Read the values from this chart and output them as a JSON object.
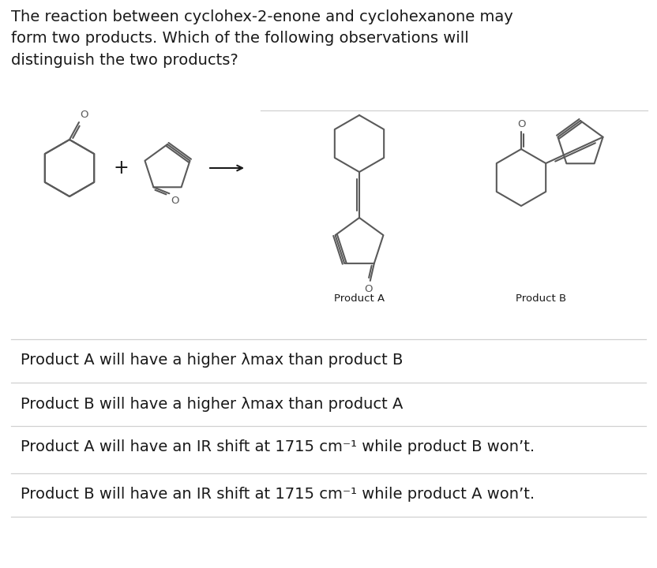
{
  "question_text": "The reaction between cyclohex-2-enone and cyclohexanone may\nform two products. Which of the following observations will\ndistinguish the two products?",
  "product_a_label": "Product A",
  "product_b_label": "Product B",
  "options": [
    "Product A will have a higher λmax than product B",
    "Product B will have a higher λmax than product A",
    "Product A will have an IR shift at 1715 cm⁻¹ while product B won’t.",
    "Product B will have an IR shift at 1715 cm⁻¹ while product A won’t."
  ],
  "bg_color": "#ffffff",
  "text_color": "#1a1a1a",
  "line_color": "#d0d0d0",
  "struct_color": "#5a5a5a",
  "question_fontsize": 14.0,
  "option_fontsize": 14.0,
  "label_fontsize": 9.5
}
